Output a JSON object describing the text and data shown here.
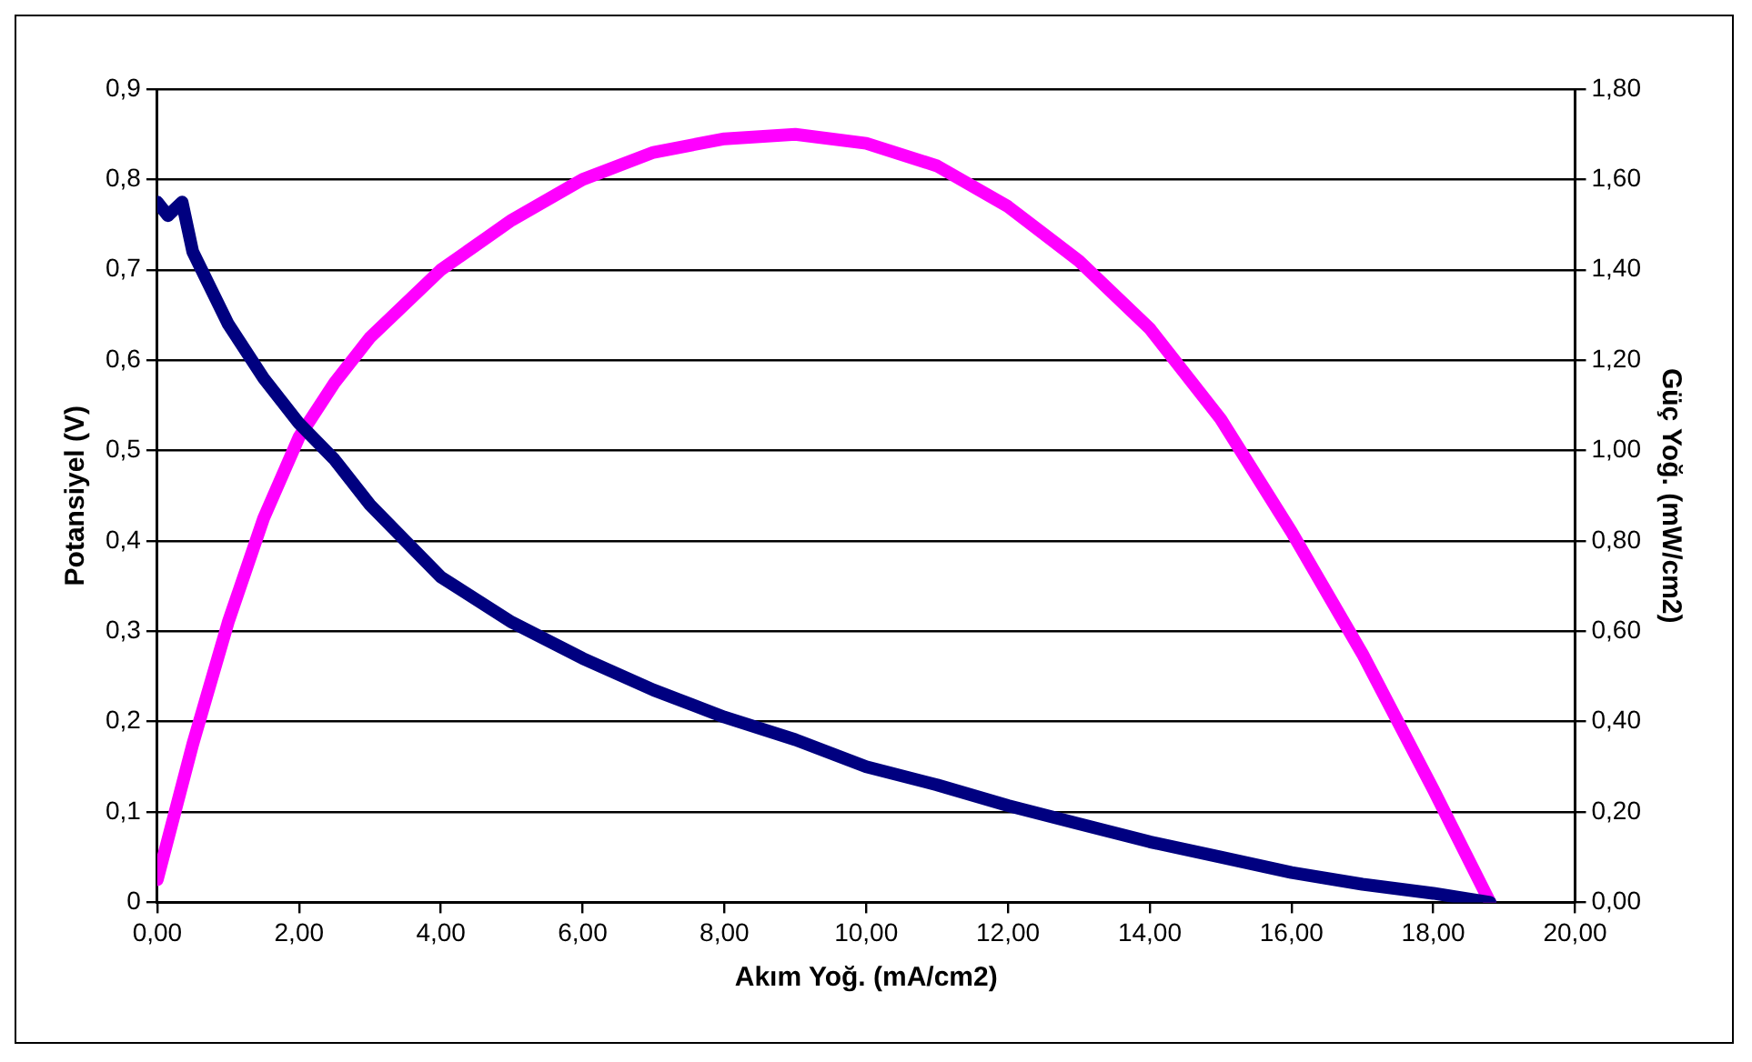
{
  "chart_data": {
    "type": "line",
    "xlabel": "Akım Yoğ. (mA/cm2)",
    "ylabel": "Potansiyel (V)",
    "y2label": "Güç Yoğ. (mW/cm2)",
    "series": [
      {
        "color": "#000080",
        "x": [
          0,
          0.15,
          0.35,
          0.5,
          1,
          1.5,
          2,
          2.5,
          3,
          3.5,
          4,
          5,
          6,
          7,
          8,
          9,
          10,
          11,
          12,
          13,
          14,
          15,
          16,
          17,
          18,
          18.8
        ],
        "values": [
          0.775,
          0.76,
          0.775,
          0.72,
          0.64,
          0.58,
          0.53,
          0.49,
          0.44,
          0.4,
          0.36,
          0.31,
          0.27,
          0.235,
          0.205,
          0.18,
          0.15,
          0.13,
          0.107,
          0.087,
          0.067,
          0.05,
          0.033,
          0.02,
          0.01,
          0
        ]
      },
      {
        "color": "#ff00ff",
        "axis": "y2",
        "x": [
          0,
          0.5,
          1,
          1.5,
          2,
          2.5,
          3,
          4,
          5,
          6,
          7,
          8,
          9,
          10,
          11,
          12,
          13,
          14,
          15,
          16,
          17,
          18,
          18.8
        ],
        "values": [
          0.05,
          0.35,
          0.62,
          0.85,
          1.03,
          1.15,
          1.25,
          1.4,
          1.51,
          1.6,
          1.66,
          1.69,
          1.7,
          1.68,
          1.63,
          1.54,
          1.42,
          1.27,
          1.07,
          0.82,
          0.55,
          0.25,
          0
        ]
      }
    ],
    "xlim": [
      0,
      20
    ],
    "xticks": [
      {
        "value": 0,
        "label": "0,00"
      },
      {
        "value": 2,
        "label": "2,00"
      },
      {
        "value": 4,
        "label": "4,00"
      },
      {
        "value": 6,
        "label": "6,00"
      },
      {
        "value": 8,
        "label": "8,00"
      },
      {
        "value": 10,
        "label": "10,00"
      },
      {
        "value": 12,
        "label": "12,00"
      },
      {
        "value": 14,
        "label": "14,00"
      },
      {
        "value": 16,
        "label": "16,00"
      },
      {
        "value": 18,
        "label": "18,00"
      },
      {
        "value": 20,
        "label": "20,00"
      }
    ],
    "ylim": [
      0,
      0.9
    ],
    "yticks": [
      0,
      {
        "value": 0.1,
        "label": "0,1"
      },
      {
        "value": 0.2,
        "label": "0,2"
      },
      {
        "value": 0.3,
        "label": "0,3"
      },
      {
        "value": 0.4,
        "label": "0,4"
      },
      {
        "value": 0.5,
        "label": "0,5"
      },
      {
        "value": 0.6,
        "label": "0,6"
      },
      {
        "value": 0.7,
        "label": "0,7"
      },
      {
        "value": 0.8,
        "label": "0,8"
      },
      {
        "value": 0.9,
        "label": "0,9"
      }
    ],
    "y2lim": [
      0,
      1.8
    ],
    "y2ticks": [
      {
        "value": 0,
        "label": "0,00"
      },
      {
        "value": 0.2,
        "label": "0,20"
      },
      {
        "value": 0.4,
        "label": "0,40"
      },
      {
        "value": 0.6,
        "label": "0,60"
      },
      {
        "value": 0.8,
        "label": "0,80"
      },
      {
        "value": 1,
        "label": "1,00"
      },
      {
        "value": 1.2,
        "label": "1,20"
      },
      {
        "value": 1.4,
        "label": "1,40"
      },
      {
        "value": 1.6,
        "label": "1,60"
      },
      {
        "value": 1.8,
        "label": "1,80"
      }
    ],
    "grid": "y",
    "legend": false,
    "marker": "none",
    "line_style": "solid"
  }
}
